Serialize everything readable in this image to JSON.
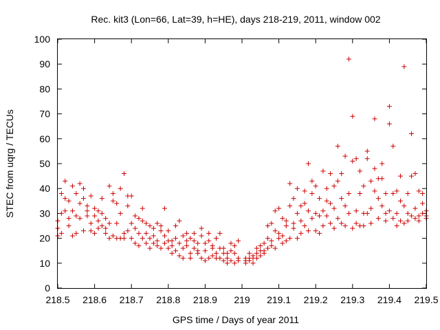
{
  "chart_data": {
    "type": "scatter",
    "title": "Rec. kit3 (Lon=66, Lat=39, h=HE), days 218-219, 2011, window 002",
    "xlabel": "GPS time / Days of year 2011",
    "ylabel": "STEC from uqrg / TECUs",
    "xlim": [
      218.5,
      219.5
    ],
    "ylim": [
      0,
      100
    ],
    "xticks": [
      218.5,
      218.6,
      218.7,
      218.8,
      218.9,
      219,
      219.1,
      219.2,
      219.3,
      219.4,
      219.5
    ],
    "xtick_labels": [
      "218.5",
      "218.6",
      "218.7",
      "218.8",
      "218.9",
      "219",
      "219.1",
      "219.2",
      "219.3",
      "219.4",
      "219.5"
    ],
    "yticks": [
      0,
      10,
      20,
      30,
      40,
      50,
      60,
      70,
      80,
      90,
      100
    ],
    "ytick_labels": [
      "0",
      "10",
      "20",
      "30",
      "40",
      "50",
      "60",
      "70",
      "80",
      "90",
      "100"
    ],
    "grid": false,
    "marker": "plus",
    "color": "#cc0000",
    "series": [
      {
        "points": [
          [
            218.5,
            24
          ],
          [
            218.51,
            30
          ],
          [
            218.52,
            43
          ],
          [
            218.53,
            35
          ],
          [
            218.54,
            41
          ],
          [
            218.55,
            22
          ],
          [
            218.56,
            42
          ],
          [
            218.57,
            36
          ],
          [
            218.58,
            29
          ],
          [
            218.59,
            23
          ],
          [
            218.5,
            27
          ],
          [
            218.51,
            22
          ],
          [
            218.52,
            36
          ],
          [
            218.53,
            28
          ],
          [
            218.54,
            31
          ],
          [
            218.55,
            38
          ],
          [
            218.56,
            34
          ],
          [
            218.57,
            40
          ],
          [
            218.58,
            33
          ],
          [
            218.59,
            37
          ],
          [
            218.5,
            21
          ],
          [
            218.51,
            38
          ],
          [
            218.52,
            31
          ],
          [
            218.53,
            25
          ],
          [
            218.54,
            21
          ],
          [
            218.55,
            29
          ],
          [
            218.56,
            28
          ],
          [
            218.57,
            23
          ],
          [
            218.58,
            31
          ],
          [
            218.59,
            26
          ],
          [
            218.6,
            32
          ],
          [
            218.61,
            27
          ],
          [
            218.62,
            30
          ],
          [
            218.63,
            24
          ],
          [
            218.64,
            41
          ],
          [
            218.65,
            35
          ],
          [
            218.66,
            26
          ],
          [
            218.67,
            40
          ],
          [
            218.68,
            46
          ],
          [
            218.69,
            33
          ],
          [
            218.6,
            22
          ],
          [
            218.61,
            24
          ],
          [
            218.62,
            25
          ],
          [
            218.63,
            22
          ],
          [
            218.64,
            20
          ],
          [
            218.65,
            21
          ],
          [
            218.66,
            34
          ],
          [
            218.67,
            20
          ],
          [
            218.68,
            22
          ],
          [
            218.69,
            37
          ],
          [
            218.6,
            29
          ],
          [
            218.61,
            31
          ],
          [
            218.62,
            36
          ],
          [
            218.63,
            28
          ],
          [
            218.64,
            26
          ],
          [
            218.65,
            38
          ],
          [
            218.66,
            20
          ],
          [
            218.67,
            30
          ],
          [
            218.68,
            20
          ],
          [
            218.69,
            23
          ],
          [
            218.7,
            26
          ],
          [
            218.71,
            24
          ],
          [
            218.72,
            22
          ],
          [
            218.73,
            32
          ],
          [
            218.74,
            18
          ],
          [
            218.75,
            20
          ],
          [
            218.76,
            21
          ],
          [
            218.77,
            17
          ],
          [
            218.78,
            23
          ],
          [
            218.79,
            32
          ],
          [
            218.7,
            37
          ],
          [
            218.71,
            29
          ],
          [
            218.72,
            17
          ],
          [
            218.73,
            27
          ],
          [
            218.74,
            26
          ],
          [
            218.75,
            16
          ],
          [
            218.76,
            24
          ],
          [
            218.77,
            19
          ],
          [
            218.78,
            25
          ],
          [
            218.79,
            18
          ],
          [
            218.7,
            20
          ],
          [
            218.71,
            18
          ],
          [
            218.72,
            28
          ],
          [
            218.73,
            20
          ],
          [
            218.74,
            22
          ],
          [
            218.75,
            25
          ],
          [
            218.76,
            18
          ],
          [
            218.77,
            26
          ],
          [
            218.78,
            16
          ],
          [
            218.79,
            21
          ],
          [
            218.8,
            19
          ],
          [
            218.81,
            17
          ],
          [
            218.82,
            25
          ],
          [
            218.83,
            13
          ],
          [
            218.84,
            21
          ],
          [
            218.85,
            19
          ],
          [
            218.86,
            12
          ],
          [
            218.87,
            22
          ],
          [
            218.88,
            14
          ],
          [
            218.89,
            21
          ],
          [
            218.8,
            23
          ],
          [
            218.81,
            14
          ],
          [
            218.82,
            20
          ],
          [
            218.83,
            27
          ],
          [
            218.84,
            16
          ],
          [
            218.85,
            22
          ],
          [
            218.86,
            20
          ],
          [
            218.87,
            16
          ],
          [
            218.88,
            18
          ],
          [
            218.89,
            12
          ],
          [
            218.8,
            16
          ],
          [
            218.81,
            19
          ],
          [
            218.82,
            15
          ],
          [
            218.83,
            18
          ],
          [
            218.84,
            12
          ],
          [
            218.85,
            17
          ],
          [
            218.86,
            14
          ],
          [
            218.87,
            19
          ],
          [
            218.88,
            15
          ],
          [
            218.89,
            24
          ],
          [
            218.9,
            18
          ],
          [
            218.91,
            22
          ],
          [
            218.92,
            13
          ],
          [
            218.93,
            20
          ],
          [
            218.94,
            16
          ],
          [
            218.95,
            11
          ],
          [
            218.96,
            14
          ],
          [
            218.97,
            18
          ],
          [
            218.98,
            10
          ],
          [
            218.99,
            19
          ],
          [
            218.9,
            15
          ],
          [
            218.91,
            12
          ],
          [
            218.92,
            17
          ],
          [
            218.93,
            14
          ],
          [
            218.94,
            12
          ],
          [
            218.95,
            16
          ],
          [
            218.96,
            12
          ],
          [
            218.97,
            15
          ],
          [
            218.98,
            14
          ],
          [
            218.99,
            12
          ],
          [
            218.9,
            11
          ],
          [
            218.91,
            19
          ],
          [
            218.92,
            16
          ],
          [
            218.93,
            12
          ],
          [
            218.94,
            22
          ],
          [
            218.95,
            14
          ],
          [
            218.96,
            10
          ],
          [
            218.97,
            11
          ],
          [
            218.98,
            17
          ],
          [
            218.99,
            11
          ],
          [
            219.01,
            10
          ],
          [
            219.02,
            11
          ],
          [
            219.03,
            13
          ],
          [
            219.04,
            12
          ],
          [
            219.05,
            17
          ],
          [
            219.06,
            15
          ],
          [
            219.07,
            25
          ],
          [
            219.08,
            19
          ],
          [
            219.09,
            31
          ],
          [
            219.1,
            20
          ],
          [
            219.01,
            12
          ],
          [
            219.02,
            14
          ],
          [
            219.03,
            10
          ],
          [
            219.04,
            16
          ],
          [
            219.05,
            13
          ],
          [
            219.06,
            18
          ],
          [
            219.07,
            16
          ],
          [
            219.08,
            26
          ],
          [
            219.09,
            23
          ],
          [
            219.1,
            32
          ],
          [
            219.01,
            11
          ],
          [
            219.02,
            12
          ],
          [
            219.03,
            12
          ],
          [
            219.04,
            14
          ],
          [
            219.05,
            15
          ],
          [
            219.06,
            14
          ],
          [
            219.07,
            20
          ],
          [
            219.08,
            17
          ],
          [
            219.09,
            16
          ],
          [
            219.1,
            22
          ],
          [
            219.11,
            28
          ],
          [
            219.12,
            19
          ],
          [
            219.13,
            42
          ],
          [
            219.14,
            24
          ],
          [
            219.15,
            30
          ],
          [
            219.16,
            22
          ],
          [
            219.17,
            39
          ],
          [
            219.18,
            50
          ],
          [
            219.19,
            28
          ],
          [
            219.2,
            41
          ],
          [
            219.11,
            18
          ],
          [
            219.12,
            25
          ],
          [
            219.13,
            20
          ],
          [
            219.14,
            36
          ],
          [
            219.15,
            20
          ],
          [
            219.16,
            33
          ],
          [
            219.17,
            25
          ],
          [
            219.18,
            31
          ],
          [
            219.19,
            43
          ],
          [
            219.2,
            23
          ],
          [
            219.11,
            21
          ],
          [
            219.12,
            27
          ],
          [
            219.13,
            33
          ],
          [
            219.14,
            26
          ],
          [
            219.15,
            40
          ],
          [
            219.16,
            27
          ],
          [
            219.17,
            34
          ],
          [
            219.18,
            23
          ],
          [
            219.19,
            38
          ],
          [
            219.2,
            30
          ],
          [
            219.21,
            22
          ],
          [
            219.22,
            47
          ],
          [
            219.23,
            35
          ],
          [
            219.24,
            46
          ],
          [
            219.25,
            32
          ],
          [
            219.26,
            57
          ],
          [
            219.27,
            26
          ],
          [
            219.28,
            53
          ],
          [
            219.29,
            92
          ],
          [
            219.3,
            51
          ],
          [
            219.21,
            36
          ],
          [
            219.22,
            31
          ],
          [
            219.23,
            40
          ],
          [
            219.24,
            26
          ],
          [
            219.25,
            41
          ],
          [
            219.26,
            28
          ],
          [
            219.27,
            46
          ],
          [
            219.28,
            33
          ],
          [
            219.29,
            38
          ],
          [
            219.3,
            69
          ],
          [
            219.21,
            29
          ],
          [
            219.22,
            25
          ],
          [
            219.23,
            29
          ],
          [
            219.24,
            34
          ],
          [
            219.25,
            24
          ],
          [
            219.26,
            43
          ],
          [
            219.27,
            36
          ],
          [
            219.28,
            25
          ],
          [
            219.29,
            30
          ],
          [
            219.3,
            24
          ],
          [
            219.31,
            31
          ],
          [
            219.32,
            47
          ],
          [
            219.33,
            25
          ],
          [
            219.34,
            52
          ],
          [
            219.35,
            32
          ],
          [
            219.36,
            68
          ],
          [
            219.37,
            36
          ],
          [
            219.38,
            44
          ],
          [
            219.39,
            30
          ],
          [
            219.4,
            73
          ],
          [
            219.31,
            52
          ],
          [
            219.32,
            38
          ],
          [
            219.33,
            30
          ],
          [
            219.34,
            55
          ],
          [
            219.35,
            43
          ],
          [
            219.36,
            48
          ],
          [
            219.37,
            28
          ],
          [
            219.38,
            50
          ],
          [
            219.39,
            38
          ],
          [
            219.4,
            66
          ],
          [
            219.31,
            26
          ],
          [
            219.32,
            25
          ],
          [
            219.33,
            41
          ],
          [
            219.34,
            30
          ],
          [
            219.35,
            26
          ],
          [
            219.36,
            39
          ],
          [
            219.37,
            44
          ],
          [
            219.38,
            33
          ],
          [
            219.39,
            27
          ],
          [
            219.4,
            31
          ],
          [
            219.41,
            57
          ],
          [
            219.42,
            39
          ],
          [
            219.43,
            35
          ],
          [
            219.44,
            89
          ],
          [
            219.45,
            30
          ],
          [
            219.46,
            62
          ],
          [
            219.47,
            28
          ],
          [
            219.48,
            39
          ],
          [
            219.49,
            34
          ],
          [
            219.5,
            29
          ],
          [
            219.41,
            38
          ],
          [
            219.42,
            30
          ],
          [
            219.43,
            45
          ],
          [
            219.44,
            26
          ],
          [
            219.45,
            38
          ],
          [
            219.46,
            29
          ],
          [
            219.47,
            46
          ],
          [
            219.48,
            27
          ],
          [
            219.49,
            30
          ],
          [
            219.5,
            28
          ],
          [
            219.41,
            28
          ],
          [
            219.42,
            25
          ],
          [
            219.43,
            27
          ],
          [
            219.44,
            33
          ],
          [
            219.45,
            27
          ],
          [
            219.46,
            45
          ],
          [
            219.47,
            32
          ],
          [
            219.48,
            29
          ],
          [
            219.49,
            38
          ],
          [
            219.5,
            31
          ]
        ]
      }
    ]
  }
}
